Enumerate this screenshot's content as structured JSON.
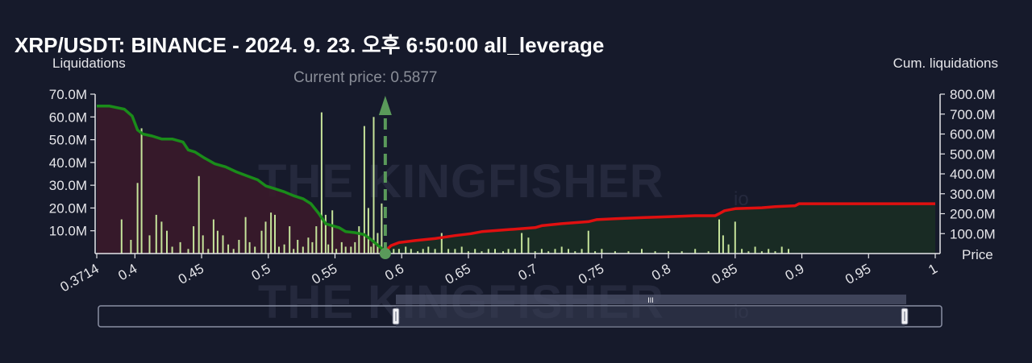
{
  "title": "XRP/USDT: BINANCE - 2024. 9. 23. 오후 6:50:00 all_leverage",
  "watermark": "THE KINGFISHER",
  "watermark_suffix": "io",
  "colors": {
    "background": "#161a2b",
    "long_cum_line": "#1a8c1a",
    "short_cum_line": "#e01010",
    "long_fill": "#3a1a2a",
    "short_fill": "#1a2e24",
    "bar": "#c5e39a",
    "current_price": "#5a9a5a"
  },
  "chart_data": {
    "type": "bar",
    "title": "XRP/USDT: BINANCE - 2024. 9. 23. 오후 6:50:00 all_leverage",
    "xlabel": "Price",
    "ylabel_left": "Liquidations",
    "ylabel_right": "Cum. liquidations",
    "current_price_label": "Current price: 0.5877",
    "current_price": 0.5877,
    "xlim": [
      0.3714,
      1.0
    ],
    "x_ticks": [
      "0.3714",
      "0.4",
      "0.45",
      "0.5",
      "0.55",
      "0.6",
      "0.65",
      "0.7",
      "0.75",
      "0.8",
      "0.85",
      "0.9",
      "0.95",
      "1"
    ],
    "x_tick_values": [
      0.3714,
      0.4,
      0.45,
      0.5,
      0.55,
      0.6,
      0.65,
      0.7,
      0.75,
      0.8,
      0.85,
      0.9,
      0.95,
      1.0
    ],
    "y_left_lim": [
      0,
      70
    ],
    "y_left_ticks": [
      "10.0M",
      "20.0M",
      "30.0M",
      "40.0M",
      "50.0M",
      "60.0M",
      "70.0M"
    ],
    "y_left_tick_values": [
      10,
      20,
      30,
      40,
      50,
      60,
      70
    ],
    "y_right_lim": [
      0,
      800
    ],
    "y_right_ticks": [
      "100.0M",
      "200.0M",
      "300.0M",
      "400.0M",
      "500.0M",
      "600.0M",
      "700.0M",
      "800.0M"
    ],
    "y_right_tick_values": [
      100,
      200,
      300,
      400,
      500,
      600,
      700,
      800
    ],
    "bars": {
      "x": [
        0.39,
        0.397,
        0.402,
        0.405,
        0.411,
        0.416,
        0.42,
        0.424,
        0.428,
        0.434,
        0.44,
        0.444,
        0.448,
        0.451,
        0.455,
        0.459,
        0.462,
        0.466,
        0.47,
        0.474,
        0.478,
        0.483,
        0.486,
        0.49,
        0.495,
        0.498,
        0.502,
        0.505,
        0.508,
        0.512,
        0.516,
        0.519,
        0.522,
        0.526,
        0.53,
        0.533,
        0.536,
        0.54,
        0.543,
        0.545,
        0.548,
        0.551,
        0.555,
        0.558,
        0.562,
        0.565,
        0.568,
        0.572,
        0.575,
        0.577,
        0.579,
        0.582,
        0.585,
        0.59,
        0.594,
        0.598,
        0.603,
        0.607,
        0.612,
        0.616,
        0.62,
        0.625,
        0.63,
        0.635,
        0.64,
        0.645,
        0.65,
        0.655,
        0.66,
        0.665,
        0.67,
        0.676,
        0.68,
        0.685,
        0.69,
        0.695,
        0.7,
        0.705,
        0.71,
        0.715,
        0.72,
        0.725,
        0.73,
        0.735,
        0.74,
        0.745,
        0.75,
        0.76,
        0.77,
        0.78,
        0.79,
        0.8,
        0.81,
        0.82,
        0.83,
        0.838,
        0.841,
        0.845,
        0.85,
        0.855,
        0.86,
        0.865,
        0.87,
        0.875,
        0.88,
        0.885,
        0.89
      ],
      "values": [
        15,
        6,
        31,
        55,
        8,
        17,
        14,
        10,
        3,
        5,
        2,
        12,
        34,
        8,
        2,
        15,
        10,
        8,
        4,
        2,
        6,
        16,
        5,
        3,
        10,
        14,
        18,
        17,
        3,
        4,
        12,
        2,
        6,
        3,
        7,
        5,
        12,
        62,
        17,
        4,
        19,
        2,
        5,
        3,
        3,
        5,
        12,
        56,
        20,
        3,
        60,
        9,
        22,
        3,
        2,
        2,
        3,
        2,
        1,
        2,
        3,
        2,
        9,
        2,
        2,
        3,
        1,
        2,
        1,
        2,
        2,
        1,
        2,
        2,
        9,
        7,
        1,
        2,
        1,
        2,
        3,
        2,
        1,
        2,
        10,
        1,
        2,
        1,
        1,
        2,
        1,
        1,
        1,
        2,
        1,
        15,
        8,
        4,
        14,
        2,
        1,
        3,
        1,
        2,
        1,
        3,
        2
      ]
    },
    "series": [
      {
        "name": "",
        "x": [
          0.3714,
          0.381,
          0.392,
          0.398,
          0.402,
          0.406,
          0.413,
          0.42,
          0.428,
          0.436,
          0.44,
          0.445,
          0.452,
          0.46,
          0.468,
          0.476,
          0.484,
          0.492,
          0.498,
          0.505,
          0.512,
          0.519,
          0.526,
          0.532,
          0.538,
          0.543,
          0.548,
          0.553,
          0.558,
          0.565,
          0.572,
          0.578,
          0.5877
        ],
        "values": [
          740,
          740,
          725,
          690,
          620,
          600,
          590,
          575,
          575,
          560,
          520,
          510,
          480,
          450,
          435,
          410,
          390,
          370,
          340,
          325,
          310,
          290,
          275,
          250,
          200,
          150,
          140,
          130,
          110,
          105,
          95,
          65,
          10
        ]
      },
      {
        "name": "",
        "x": [
          0.5877,
          0.592,
          0.598,
          0.61,
          0.625,
          0.64,
          0.652,
          0.66,
          0.68,
          0.7,
          0.705,
          0.72,
          0.74,
          0.746,
          0.76,
          0.78,
          0.8,
          0.82,
          0.835,
          0.838,
          0.842,
          0.85,
          0.87,
          0.88,
          0.895,
          0.898,
          0.93,
          0.96,
          1.01
        ],
        "values": [
          10,
          40,
          55,
          65,
          75,
          90,
          100,
          110,
          120,
          130,
          140,
          150,
          160,
          170,
          175,
          180,
          185,
          190,
          190,
          200,
          215,
          225,
          230,
          235,
          240,
          250,
          250,
          250,
          250
        ]
      }
    ],
    "grid": false,
    "legend": "none"
  },
  "navigator": {
    "handle_grip": "III"
  }
}
